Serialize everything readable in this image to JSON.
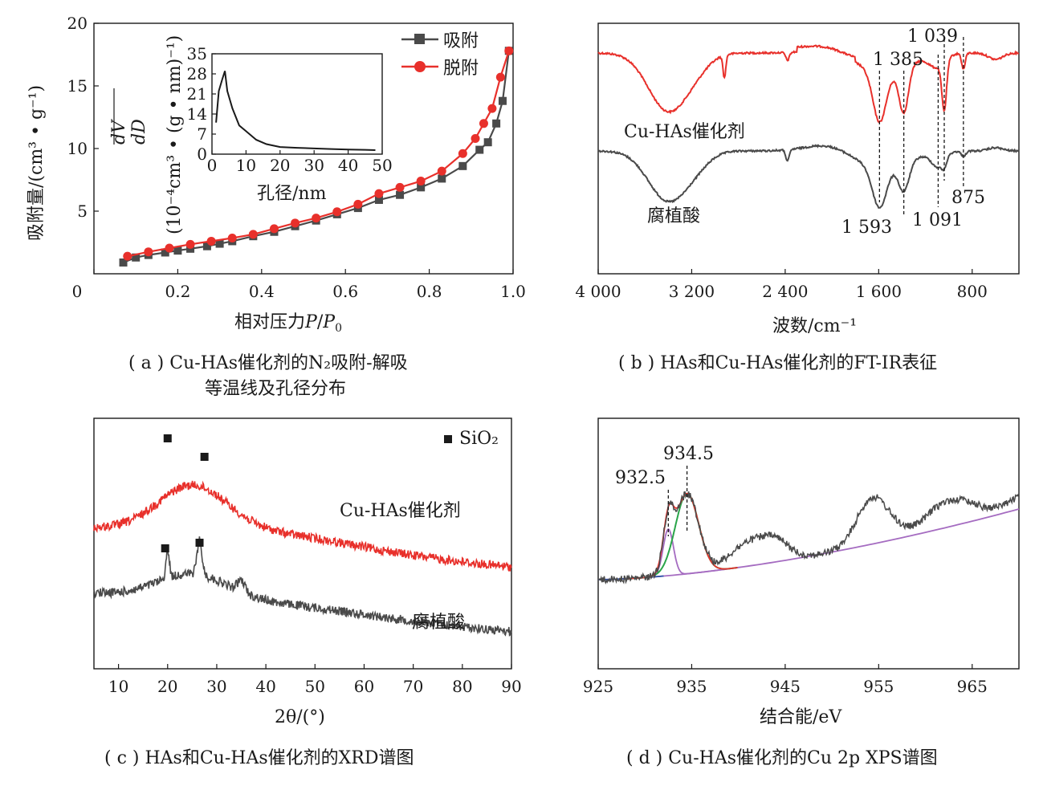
{
  "colors": {
    "red": "#e8302b",
    "dark": "#4a4a4a",
    "green": "#2aa54a",
    "purple": "#a56cc1",
    "blue": "#2c4fa8"
  },
  "captions": {
    "a_line1": "( a ) Cu-HAs催化剂的N₂吸附-解吸",
    "a_line2": "等温线及孔径分布",
    "b": "( b ) HAs和Cu-HAs催化剂的FT-IR表征",
    "c": "( c ) HAs和Cu-HAs催化剂的XRD谱图",
    "d": "( d ) Cu-HAs催化剂的Cu 2p XPS谱图"
  },
  "chart_data": [
    {
      "id": "a",
      "type": "line",
      "xlabel": "相对压力P/P₀",
      "ylabel": "吸附量/(cm³ • g⁻¹)",
      "xlim": [
        0,
        1.0
      ],
      "ylim": [
        0,
        20
      ],
      "xticks": [
        "0",
        "0.2",
        "0.4",
        "0.6",
        "0.8",
        "1.0"
      ],
      "yticks": [
        "20",
        "15",
        "10",
        "5"
      ],
      "legend": [
        "吸附",
        "脱附"
      ],
      "series": [
        {
          "name": "吸附",
          "x": [
            0.07,
            0.1,
            0.13,
            0.17,
            0.2,
            0.23,
            0.27,
            0.3,
            0.33,
            0.38,
            0.43,
            0.48,
            0.53,
            0.58,
            0.63,
            0.68,
            0.73,
            0.78,
            0.83,
            0.88,
            0.92,
            0.94,
            0.96,
            0.975,
            0.99
          ],
          "y": [
            0.9,
            1.3,
            1.5,
            1.7,
            1.85,
            2.0,
            2.2,
            2.4,
            2.6,
            3.0,
            3.35,
            3.8,
            4.25,
            4.75,
            5.25,
            5.9,
            6.3,
            6.9,
            7.6,
            8.6,
            9.9,
            10.5,
            12.0,
            13.8,
            17.8
          ]
        },
        {
          "name": "脱附",
          "x": [
            0.08,
            0.13,
            0.18,
            0.23,
            0.28,
            0.33,
            0.38,
            0.43,
            0.48,
            0.53,
            0.58,
            0.63,
            0.68,
            0.73,
            0.78,
            0.83,
            0.88,
            0.91,
            0.93,
            0.95,
            0.97,
            0.99
          ],
          "y": [
            1.4,
            1.75,
            2.05,
            2.35,
            2.6,
            2.85,
            3.15,
            3.6,
            4.05,
            4.45,
            4.95,
            5.55,
            6.4,
            6.9,
            7.4,
            8.2,
            9.6,
            10.8,
            12.0,
            13.2,
            15.7,
            17.8
          ]
        }
      ],
      "inset": {
        "xlabel": "孔径/nm",
        "ylabel": "dV/dD / (10⁻⁴cm³ • (g • nm)⁻¹)",
        "xlim": [
          0,
          50
        ],
        "ylim": [
          0,
          35
        ],
        "xticks": [
          "0",
          "10",
          "20",
          "30",
          "40",
          "50"
        ],
        "yticks": [
          "35",
          "28",
          "21",
          "14",
          "7",
          "0"
        ],
        "x": [
          1.2,
          2,
          3,
          3.8,
          4.5,
          6,
          8,
          10,
          13,
          16,
          20,
          25,
          30,
          35,
          40,
          45,
          48
        ],
        "y": [
          11,
          22,
          26,
          29,
          22,
          16,
          10,
          8,
          5,
          3.5,
          2.5,
          2.2,
          2.0,
          1.8,
          1.6,
          1.5,
          1.4
        ]
      }
    },
    {
      "id": "b",
      "type": "line",
      "xlabel": "波数/cm⁻¹",
      "xlim": [
        4000,
        400
      ],
      "xticks": [
        "4 000",
        "3 200",
        "2 400",
        "1 600",
        "800"
      ],
      "series": [
        {
          "name": "Cu-HAs催化剂"
        },
        {
          "name": "腐植酸"
        }
      ],
      "peaks_top": [
        "1 385",
        "1 039"
      ],
      "peaks_bottom": [
        "1 593",
        "1 091",
        "875"
      ]
    },
    {
      "id": "c",
      "type": "line",
      "xlabel": "2θ/(°)",
      "xlim": [
        5,
        90
      ],
      "xticks": [
        "10",
        "20",
        "30",
        "40",
        "50",
        "60",
        "70",
        "80",
        "90"
      ],
      "legend": "SiO₂",
      "series": [
        {
          "name": "Cu-HAs催化剂"
        },
        {
          "name": "腐植酸"
        }
      ],
      "sio2_peaks": [
        20.0,
        26.5
      ]
    },
    {
      "id": "d",
      "type": "line",
      "xlabel": "结合能/eV",
      "xlim": [
        925,
        970
      ],
      "xticks": [
        "925",
        "935",
        "945",
        "955",
        "965"
      ],
      "peaks": [
        "932.5",
        "934.5"
      ]
    }
  ]
}
